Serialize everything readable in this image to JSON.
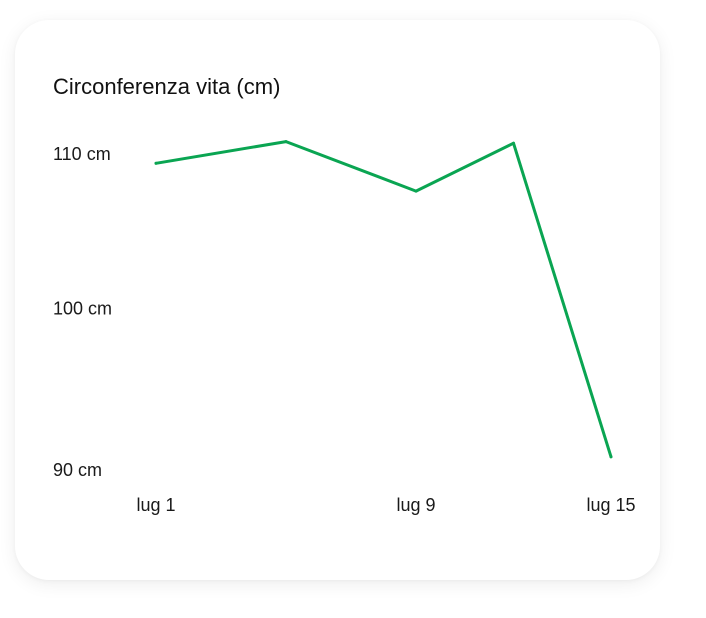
{
  "card": {
    "title": "Circonferenza vita (cm)"
  },
  "chart_data": {
    "type": "line",
    "title": "Circonferenza vita (cm)",
    "xlabel": "",
    "ylabel": "",
    "x": [
      "Jul 1",
      "Jul 5",
      "Jul 9",
      "Jul 12",
      "Jul 15"
    ],
    "series": [
      {
        "values": [
          109.4,
          110.8,
          107.6,
          110.7,
          90.4
        ]
      }
    ],
    "x_ticks": [
      "Jul 1",
      "Jul 9",
      "Jul 15"
    ],
    "x_tick_labels": [
      "lug 1",
      "lug 9",
      "lug 15"
    ],
    "y_ticks": [
      90,
      100,
      110
    ],
    "y_tick_labels": [
      "90 cm",
      "100 cm",
      "110 cm"
    ],
    "ylim": [
      90,
      110
    ],
    "grid": false,
    "legend": "none",
    "line_color": "#0aa552"
  }
}
